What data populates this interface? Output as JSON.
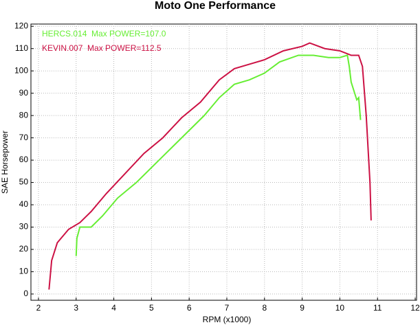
{
  "chart_data": {
    "type": "line",
    "title": "Moto One Performance",
    "x_label": "RPM (x1000)",
    "y_label": "SAE Horsepower",
    "xlim": [
      1.8,
      12
    ],
    "xticks": [
      2,
      3,
      4,
      5,
      6,
      7,
      8,
      9,
      10,
      11,
      12
    ],
    "ylim": [
      -2.8,
      121
    ],
    "yticks": [
      0,
      10,
      20,
      30,
      40,
      50,
      60,
      70,
      80,
      90,
      100,
      110,
      120
    ],
    "grid": true,
    "legend": "top-left",
    "series": [
      {
        "name": "HERCS.014  Max POWER=107.0",
        "color": "#66ee33",
        "x": [
          3.0,
          3.02,
          3.1,
          3.2,
          3.4,
          3.7,
          4.1,
          4.6,
          5.2,
          5.8,
          6.4,
          6.8,
          7.2,
          7.6,
          8.0,
          8.4,
          8.9,
          9.3,
          9.7,
          10.0,
          10.2,
          10.25,
          10.3,
          10.45,
          10.5,
          10.55
        ],
        "values": [
          17,
          25,
          30,
          30,
          30,
          35,
          43,
          50,
          60,
          70,
          80,
          88,
          94,
          96,
          99,
          104,
          107,
          107,
          106,
          106,
          107,
          102,
          95,
          87,
          88,
          78
        ]
      },
      {
        "name": "KEVIN.007  Max POWER=112.5",
        "color": "#cc1144",
        "x": [
          2.28,
          2.35,
          2.5,
          2.8,
          3.1,
          3.4,
          3.8,
          4.3,
          4.8,
          5.3,
          5.8,
          6.3,
          6.8,
          7.2,
          7.6,
          8.0,
          8.5,
          9.0,
          9.2,
          9.6,
          10.0,
          10.3,
          10.5,
          10.6,
          10.7,
          10.8,
          10.83
        ],
        "values": [
          2,
          15,
          23,
          29,
          32,
          37,
          45,
          54,
          63,
          70,
          79,
          86,
          96,
          101,
          103,
          105,
          109,
          111,
          112.5,
          110,
          109,
          107,
          107,
          102,
          80,
          50,
          33
        ]
      }
    ]
  }
}
